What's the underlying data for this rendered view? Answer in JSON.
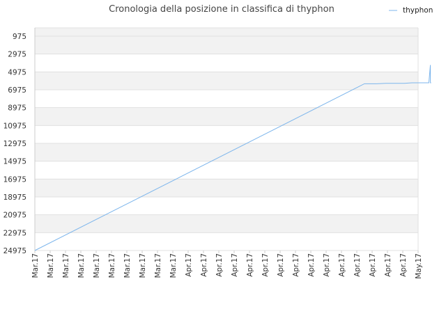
{
  "chart_data": {
    "type": "line",
    "title": "Cronologia della posizione in classifica di thyphon",
    "legend": {
      "position": "top-right",
      "entries": [
        "thyphon"
      ]
    },
    "y_axis": {
      "reversed": true,
      "range": [
        975,
        24975
      ],
      "ticks": [
        975,
        2975,
        4975,
        6975,
        8975,
        10975,
        12975,
        14975,
        16975,
        18975,
        20975,
        22975,
        24975
      ],
      "tick_labels": [
        "975",
        "2975",
        "4975",
        "6975",
        "8975",
        "10975",
        "12975",
        "14975",
        "16975",
        "18975",
        "20975",
        "22975",
        "24975"
      ]
    },
    "x_axis": {
      "tick_labels": [
        "Mar.17",
        "Mar.17",
        "Mar.17",
        "Mar.17",
        "Mar.17",
        "Mar.17",
        "Mar.17",
        "Mar.17",
        "Mar.17",
        "Mar.17",
        "Apr.17",
        "Apr.17",
        "Apr.17",
        "Apr.17",
        "Apr.17",
        "Apr.17",
        "Apr.17",
        "Apr.17",
        "Apr.17",
        "Apr.17",
        "Apr.17",
        "Apr.17",
        "Apr.17",
        "Apr.17",
        "Apr.17",
        "May.17"
      ]
    },
    "grid": true,
    "series": [
      {
        "name": "thyphon",
        "color": "#7cb5ec",
        "x": [
          0,
          21.5,
          22.3,
          22.9,
          24.1,
          24.6,
          25.7,
          25.8,
          25.8,
          25.85
        ],
        "y": [
          24975,
          6300,
          6300,
          6250,
          6250,
          6200,
          6200,
          4200,
          6200,
          6200
        ]
      }
    ]
  },
  "colors": {
    "band": "#f2f2f2",
    "gridline": "#e0e0e0",
    "axis": "#cccccc"
  }
}
